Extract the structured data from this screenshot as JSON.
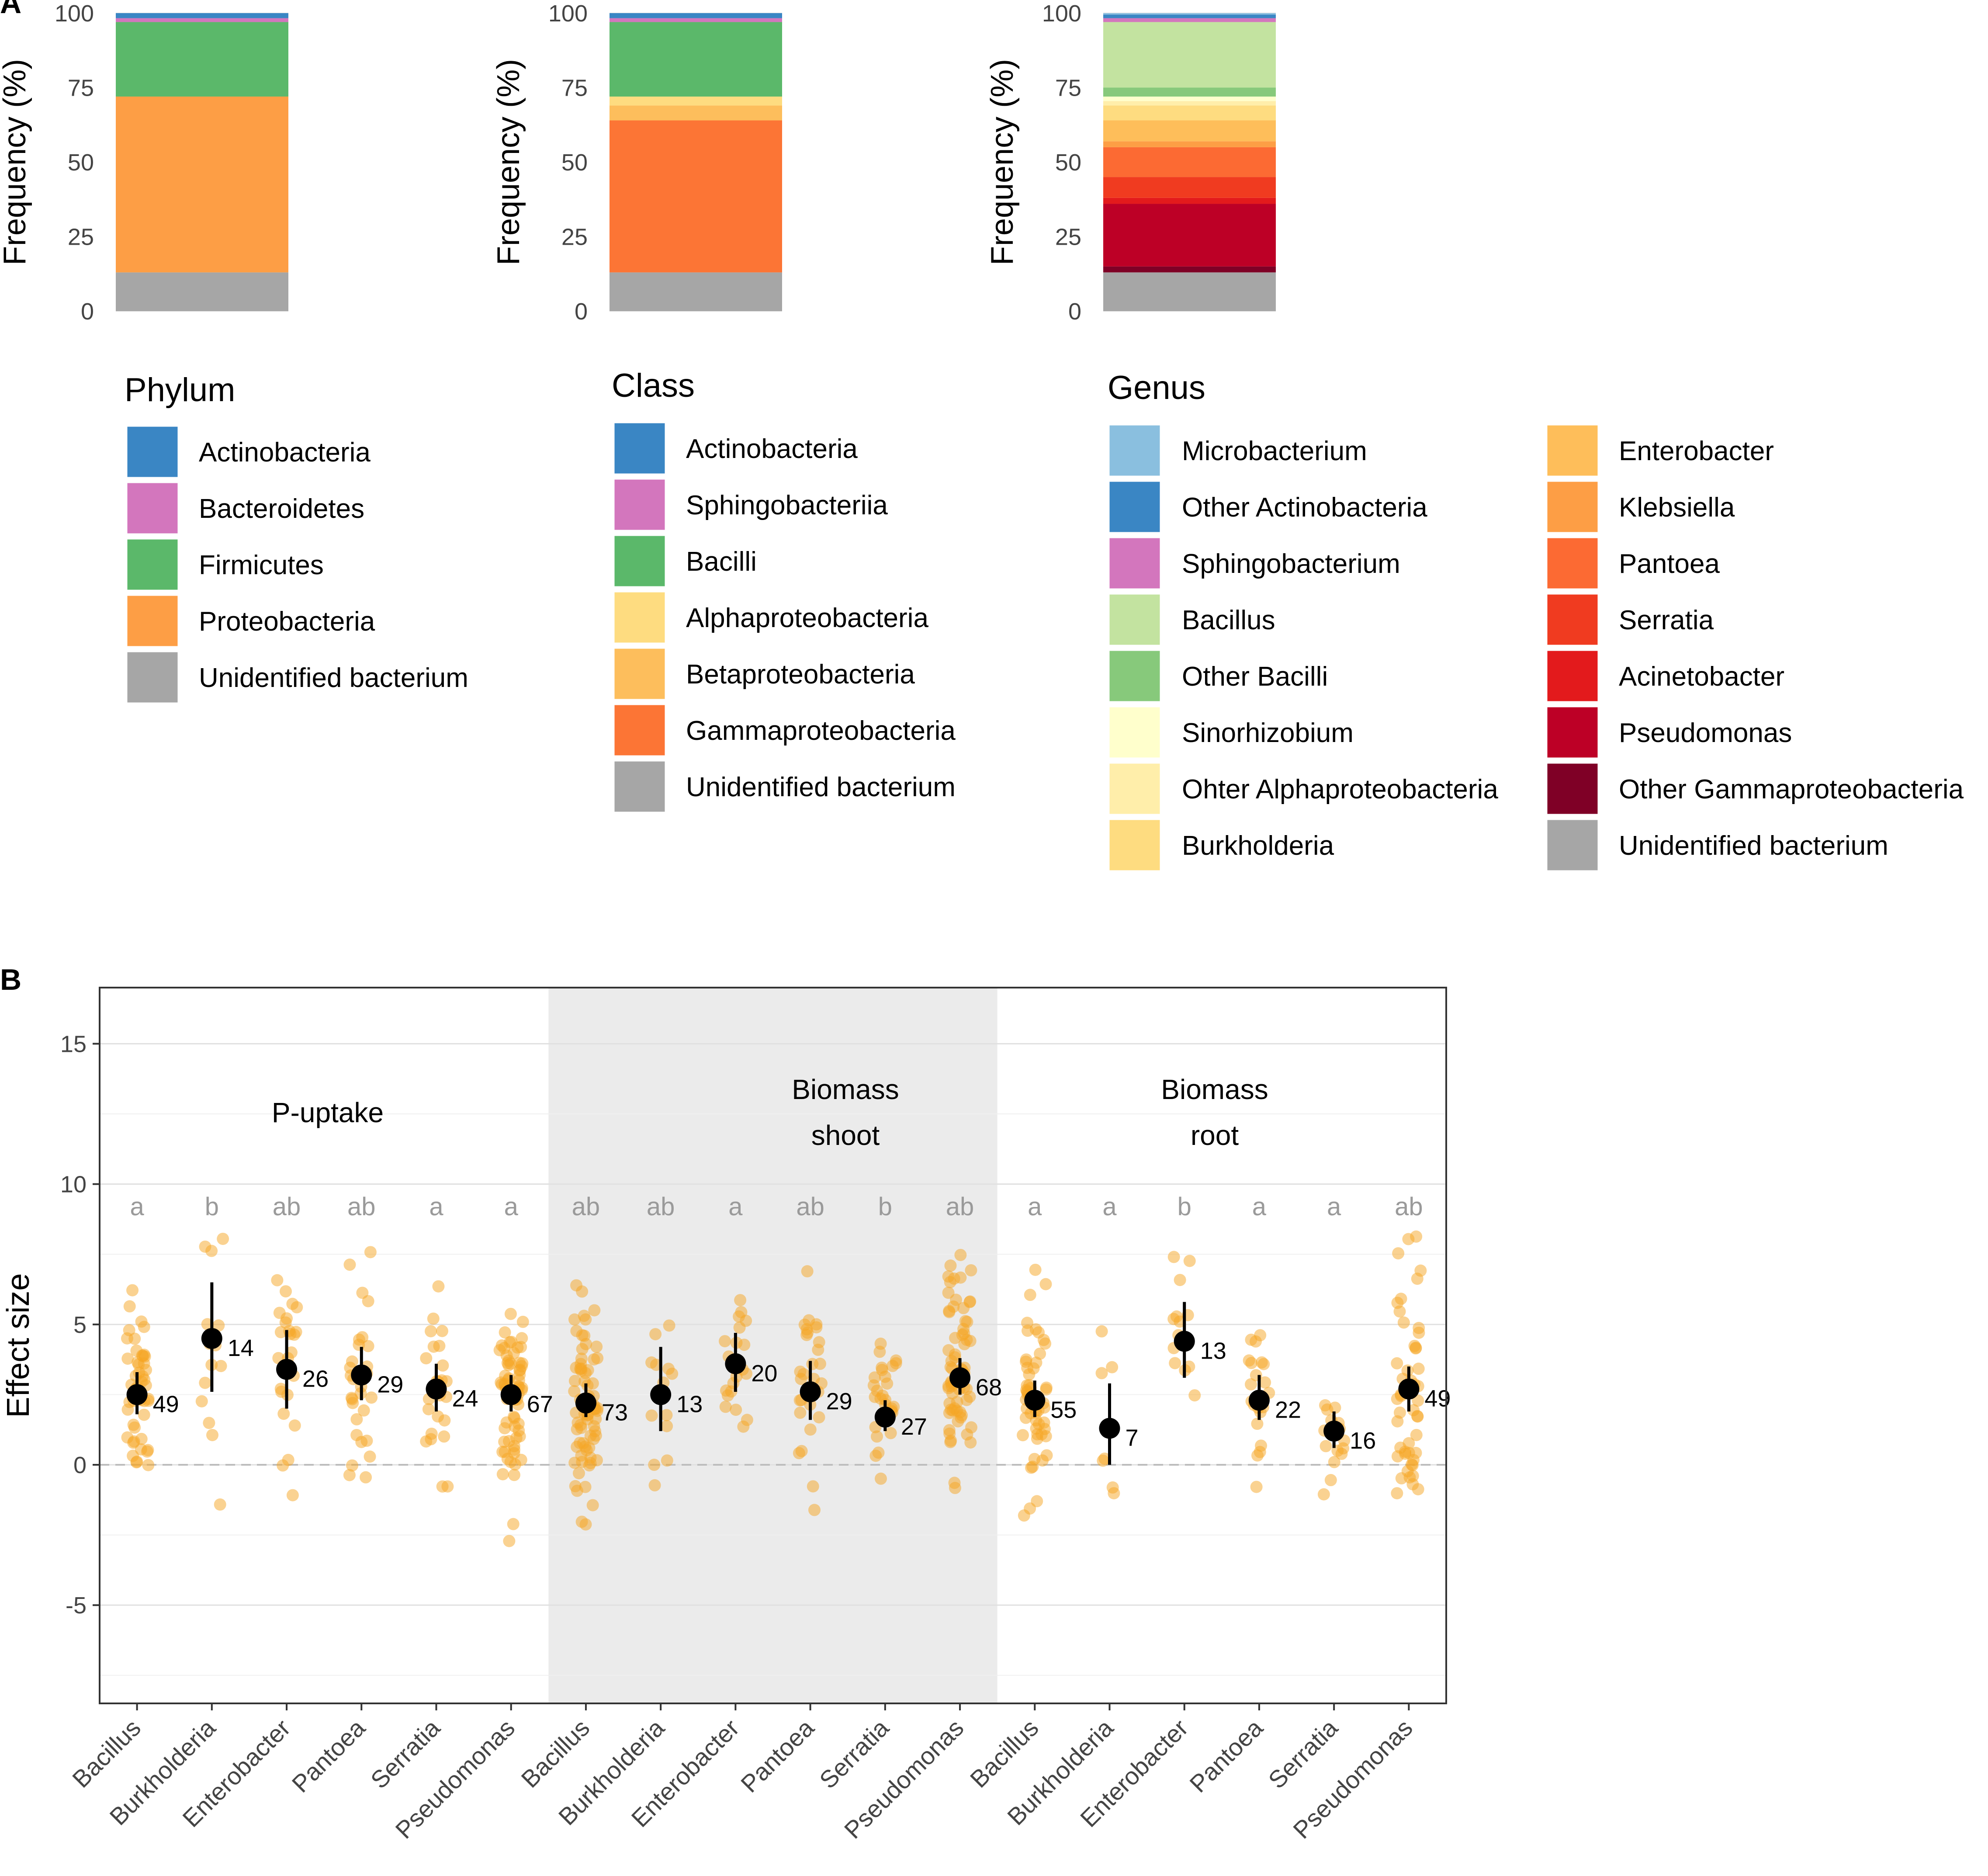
{
  "panel_labels": {
    "a": "A",
    "b": "B"
  },
  "chart_data": [
    {
      "type": "bar",
      "variant": "stacked-100",
      "panel": "A",
      "title": "Phylum",
      "ylabel": "Frequency (%)",
      "ylim": [
        0,
        100
      ],
      "yticks": [
        "0",
        "25",
        "50",
        "75",
        "100"
      ],
      "stack_order": "bottom-to-top",
      "segments": [
        {
          "name": "Unidentified bacterium",
          "value": 13,
          "color": "#a6a6a6"
        },
        {
          "name": "Proteobacteria",
          "value": 59,
          "color": "#fd9e45"
        },
        {
          "name": "Firmicutes",
          "value": 25,
          "color": "#5bb86a"
        },
        {
          "name": "Bacteroidetes",
          "value": 1.3,
          "color": "#d376bd"
        },
        {
          "name": "Actinobacteria",
          "value": 1.7,
          "color": "#3a86c4"
        }
      ],
      "legend": [
        {
          "label": "Actinobacteria",
          "color": "#3a86c4"
        },
        {
          "label": "Bacteroidetes",
          "color": "#d376bd"
        },
        {
          "label": "Firmicutes",
          "color": "#5bb86a"
        },
        {
          "label": "Proteobacteria",
          "color": "#fd9e45"
        },
        {
          "label": "Unidentified bacterium",
          "color": "#a6a6a6"
        }
      ]
    },
    {
      "type": "bar",
      "variant": "stacked-100",
      "panel": "A",
      "title": "Class",
      "ylabel": "Frequency (%)",
      "ylim": [
        0,
        100
      ],
      "yticks": [
        "0",
        "25",
        "50",
        "75",
        "100"
      ],
      "stack_order": "bottom-to-top",
      "segments": [
        {
          "name": "Unidentified bacterium",
          "value": 13,
          "color": "#a6a6a6"
        },
        {
          "name": "Gammaproteobacteria",
          "value": 51,
          "color": "#fc7535"
        },
        {
          "name": "Betaproteobacteria",
          "value": 5,
          "color": "#fdbe5c"
        },
        {
          "name": "Alphaproteobacteria",
          "value": 3,
          "color": "#fedc80"
        },
        {
          "name": "Bacilli",
          "value": 25,
          "color": "#5bb86a"
        },
        {
          "name": "Sphingobacteriia",
          "value": 1.3,
          "color": "#d376bd"
        },
        {
          "name": "Actinobacteria",
          "value": 1.7,
          "color": "#3a86c4"
        }
      ],
      "legend": [
        {
          "label": "Actinobacteria",
          "color": "#3a86c4"
        },
        {
          "label": "Sphingobacteriia",
          "color": "#d376bd"
        },
        {
          "label": "Bacilli",
          "color": "#5bb86a"
        },
        {
          "label": "Alphaproteobacteria",
          "color": "#fedc80"
        },
        {
          "label": "Betaproteobacteria",
          "color": "#fdbe5c"
        },
        {
          "label": "Gammaproteobacteria",
          "color": "#fc7535"
        },
        {
          "label": "Unidentified bacterium",
          "color": "#a6a6a6"
        }
      ]
    },
    {
      "type": "bar",
      "variant": "stacked-100",
      "panel": "A",
      "title": "Genus",
      "ylabel": "Frequency (%)",
      "ylim": [
        0,
        100
      ],
      "yticks": [
        "0",
        "25",
        "50",
        "75",
        "100"
      ],
      "stack_order": "bottom-to-top",
      "segments": [
        {
          "name": "Unidentified bacterium",
          "value": 13,
          "color": "#a6a6a6"
        },
        {
          "name": "Other Gammaproteobacteria",
          "value": 2,
          "color": "#7f0026"
        },
        {
          "name": "Pseudomonas",
          "value": 21,
          "color": "#bd0026"
        },
        {
          "name": "Acinetobacter",
          "value": 2,
          "color": "#e31a1c"
        },
        {
          "name": "Serratia",
          "value": 7,
          "color": "#f03b20"
        },
        {
          "name": "Pantoea",
          "value": 10,
          "color": "#fc6a33"
        },
        {
          "name": "Klebsiella",
          "value": 2,
          "color": "#fd9e45"
        },
        {
          "name": "Enterobacter",
          "value": 7,
          "color": "#febe5a"
        },
        {
          "name": "Burkholderia",
          "value": 5,
          "color": "#fedc80"
        },
        {
          "name": "Ohter Alphaproteobacteria",
          "value": 1.5,
          "color": "#ffeeaa"
        },
        {
          "name": "Sinorhizobium",
          "value": 1.5,
          "color": "#ffffcc"
        },
        {
          "name": "Other Bacilli",
          "value": 3,
          "color": "#87c97b"
        },
        {
          "name": "Bacillus",
          "value": 22,
          "color": "#c3e3a0"
        },
        {
          "name": "Sphingobacterium",
          "value": 1.3,
          "color": "#d376bd"
        },
        {
          "name": "Other Actinobacteria",
          "value": 1.2,
          "color": "#3a86c4"
        },
        {
          "name": "Microbacterium",
          "value": 0.5,
          "color": "#8abfdf"
        }
      ],
      "legend": [
        {
          "label": "Microbacterium",
          "color": "#8abfdf"
        },
        {
          "label": "Other Actinobacteria",
          "color": "#3a86c4"
        },
        {
          "label": "Sphingobacterium",
          "color": "#d376bd"
        },
        {
          "label": "Bacillus",
          "color": "#c3e3a0"
        },
        {
          "label": "Other Bacilli",
          "color": "#87c97b"
        },
        {
          "label": "Sinorhizobium",
          "color": "#ffffcc"
        },
        {
          "label": "Ohter Alphaproteobacteria",
          "color": "#ffeeaa"
        },
        {
          "label": "Burkholderia",
          "color": "#fedc80"
        },
        {
          "label": "Enterobacter",
          "color": "#febe5a"
        },
        {
          "label": "Klebsiella",
          "color": "#fd9e45"
        },
        {
          "label": "Pantoea",
          "color": "#fc6a33"
        },
        {
          "label": "Serratia",
          "color": "#f03b20"
        },
        {
          "label": "Acinetobacter",
          "color": "#e31a1c"
        },
        {
          "label": "Pseudomonas",
          "color": "#bd0026"
        },
        {
          "label": "Other Gammaproteobacteria",
          "color": "#7f0026"
        },
        {
          "label": "Unidentified bacterium",
          "color": "#a6a6a6"
        }
      ]
    },
    {
      "type": "scatter",
      "variant": "point-range-with-jitter",
      "panel": "B",
      "ylabel": "Effect size",
      "ylim": [
        -8.5,
        17
      ],
      "yticks": [
        -5,
        0,
        5,
        10,
        15
      ],
      "ytick_labels": [
        "-5",
        "0",
        "5",
        "10",
        "15"
      ],
      "reference_line_y": 0,
      "colors": {
        "points": "#f5a623",
        "summary": "#000000",
        "shade": "#ebebeb"
      },
      "groups": [
        {
          "label_lines": [
            "P-uptake"
          ],
          "shaded": false
        },
        {
          "label_lines": [
            "Biomass",
            "shoot"
          ],
          "shaded": true
        },
        {
          "label_lines": [
            "Biomass",
            "root"
          ],
          "shaded": false
        }
      ],
      "categories": [
        "Bacillus",
        "Burkholderia",
        "Enterobacter",
        "Pantoea",
        "Serratia",
        "Pseudomonas",
        "Bacillus",
        "Burkholderia",
        "Enterobacter",
        "Pantoea",
        "Serratia",
        "Pseudomonas",
        "Bacillus",
        "Burkholderia",
        "Enterobacter",
        "Pantoea",
        "Serratia",
        "Pseudomonas"
      ],
      "series": [
        {
          "name": "mean effect size",
          "values": [
            2.5,
            4.5,
            3.4,
            3.2,
            2.7,
            2.5,
            2.2,
            2.5,
            3.6,
            2.6,
            1.7,
            3.1,
            2.3,
            1.3,
            4.4,
            2.3,
            1.2,
            2.7
          ]
        },
        {
          "name": "ci_low",
          "values": [
            1.8,
            2.6,
            2.0,
            2.3,
            1.9,
            1.9,
            1.7,
            1.2,
            2.6,
            1.6,
            1.2,
            2.5,
            1.7,
            0.0,
            3.1,
            1.6,
            0.6,
            1.9
          ]
        },
        {
          "name": "ci_high",
          "values": [
            3.3,
            6.5,
            4.8,
            4.2,
            3.6,
            3.2,
            2.9,
            4.2,
            4.7,
            3.7,
            2.3,
            3.8,
            3.0,
            2.9,
            5.8,
            3.2,
            1.9,
            3.5
          ]
        }
      ],
      "n_labels": [
        "49",
        "14",
        "26",
        "29",
        "24",
        "67",
        "73",
        "13",
        "20",
        "29",
        "27",
        "68",
        "55",
        "7",
        "13",
        "22",
        "16",
        "49"
      ],
      "significance_letters": [
        "a",
        "b",
        "ab",
        "ab",
        "a",
        "a",
        "ab",
        "ab",
        "a",
        "ab",
        "b",
        "ab",
        "a",
        "a",
        "b",
        "a",
        "a",
        "ab"
      ],
      "raw_points": {
        "approx_n_plotted": [
          49,
          14,
          26,
          29,
          24,
          67,
          73,
          13,
          20,
          29,
          27,
          68,
          55,
          7,
          13,
          22,
          16,
          49
        ],
        "sd": [
          2.3,
          3.1,
          2.8,
          2.5,
          2.5,
          2.4,
          2.6,
          2.3,
          2.4,
          2.6,
          1.6,
          2.7,
          2.6,
          1.9,
          2.3,
          1.9,
          1.4,
          2.6
        ]
      }
    }
  ]
}
